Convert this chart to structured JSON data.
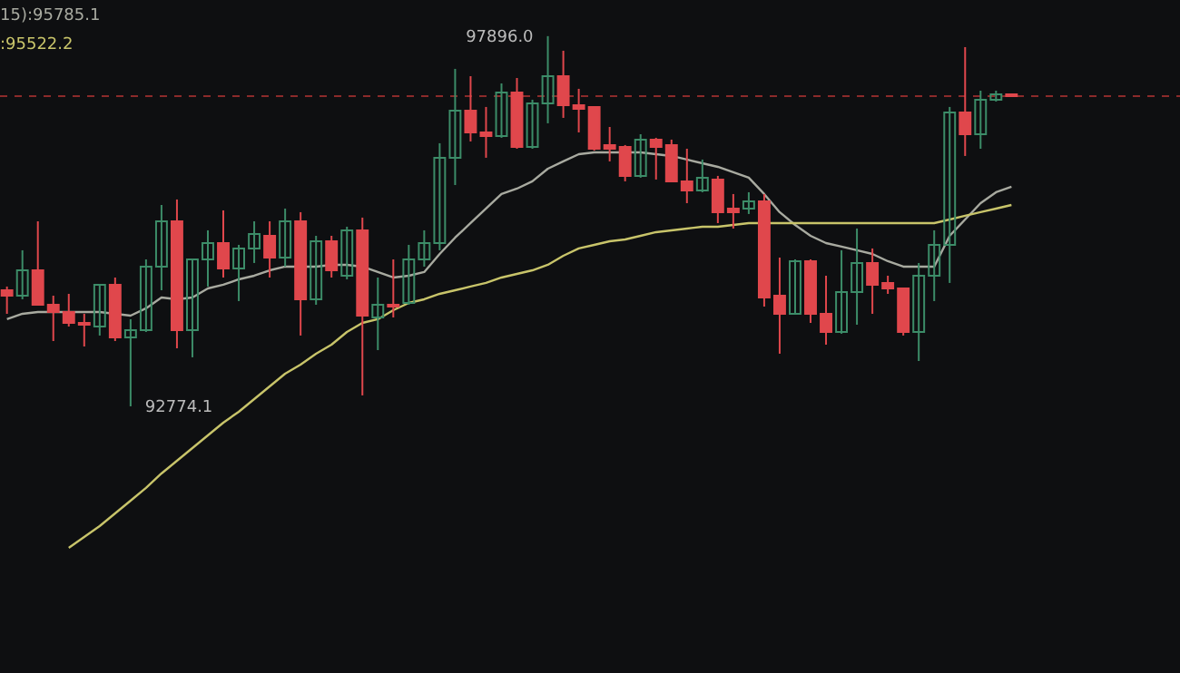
{
  "chart_data": {
    "type": "candlestick",
    "categories": [
      null,
      null,
      null,
      null,
      null,
      null,
      null,
      null,
      null,
      null,
      null,
      null,
      null,
      null,
      null,
      null,
      null,
      null,
      null,
      null,
      null,
      null,
      null,
      null,
      null,
      null,
      null,
      null,
      null,
      null,
      null,
      null,
      null,
      null,
      null,
      null,
      null,
      null,
      null,
      null,
      null,
      null,
      null,
      null,
      null,
      null,
      null,
      null,
      null,
      null,
      null,
      null,
      null,
      null,
      null,
      null,
      null,
      null,
      null,
      null,
      null,
      null,
      null,
      null,
      null,
      null
    ],
    "ohlc": [
      [
        94380,
        94431,
        94054,
        94305
      ],
      [
        94305,
        94933,
        94255,
        94656
      ],
      [
        94656,
        95334,
        94179,
        94179
      ],
      [
        94179,
        94305,
        93677,
        94079
      ],
      [
        94079,
        94330,
        93878,
        93928
      ],
      [
        93928,
        94054,
        93602,
        93903
      ],
      [
        93878,
        94456,
        93753,
        94456
      ],
      [
        94456,
        94556,
        93677,
        93728
      ],
      [
        93728,
        93979,
        92774.1,
        93828
      ],
      [
        93828,
        94807,
        93803,
        94707
      ],
      [
        94707,
        95560,
        94380,
        95334
      ],
      [
        95334,
        95636,
        93577,
        93828
      ],
      [
        93828,
        94807,
        93452,
        94807
      ],
      [
        94807,
        95209,
        94431,
        95033
      ],
      [
        95033,
        95485,
        94556,
        94682
      ],
      [
        94682,
        95008,
        94230,
        94958
      ],
      [
        94958,
        95334,
        94757,
        95159
      ],
      [
        95133,
        95334,
        94556,
        94832
      ],
      [
        94832,
        95510,
        94707,
        95334
      ],
      [
        95334,
        95460,
        93753,
        94255
      ],
      [
        94255,
        95133,
        94179,
        95058
      ],
      [
        95058,
        95133,
        94556,
        94656
      ],
      [
        94581,
        95259,
        94531,
        95209
      ],
      [
        95209,
        95385,
        92925,
        94029
      ],
      [
        94004,
        94556,
        93552,
        94179
      ],
      [
        94179,
        94807,
        94004,
        94154
      ],
      [
        94204,
        95008,
        94179,
        94807
      ],
      [
        94807,
        95209,
        94707,
        95033
      ],
      [
        95033,
        96414,
        94933,
        96213
      ],
      [
        96213,
        97443,
        95836,
        96865
      ],
      [
        96865,
        97342,
        96439,
        96564
      ],
      [
        96564,
        96916,
        96213,
        96514
      ],
      [
        96514,
        97242,
        96489,
        97116
      ],
      [
        97116,
        97317,
        96338,
        96363
      ],
      [
        96363,
        97016,
        96338,
        96966
      ],
      [
        96966,
        97896.0,
        96690,
        97342
      ],
      [
        97342,
        97694,
        96765,
        96941
      ],
      [
        96941,
        97167,
        96564,
        96891
      ],
      [
        96916,
        96916,
        96313,
        96338
      ],
      [
        96389,
        96639,
        96163,
        96338
      ],
      [
        96363,
        96389,
        95887,
        95962
      ],
      [
        95962,
        96539,
        95937,
        96464
      ],
      [
        96464,
        96489,
        95912,
        96363
      ],
      [
        96389,
        96464,
        95887,
        95887
      ],
      [
        95887,
        96338,
        95585,
        95761
      ],
      [
        95761,
        96188,
        95736,
        95937
      ],
      [
        95912,
        95962,
        95309,
        95460
      ],
      [
        95510,
        95711,
        95234,
        95460
      ],
      [
        95510,
        95736,
        95435,
        95611
      ],
      [
        95611,
        95711,
        94154,
        94280
      ],
      [
        94305,
        94832,
        93502,
        94054
      ],
      [
        94054,
        94807,
        94054,
        94782
      ],
      [
        94782,
        94807,
        93928,
        94054
      ],
      [
        94054,
        94581,
        93627,
        93803
      ],
      [
        93803,
        94933,
        93778,
        94355
      ],
      [
        94355,
        95234,
        93903,
        94757
      ],
      [
        94757,
        94958,
        94054,
        94456
      ],
      [
        94481,
        94581,
        94330,
        94405
      ],
      [
        94405,
        94405,
        93753,
        93803
      ],
      [
        93803,
        94757,
        93401,
        94581
      ],
      [
        94581,
        95209,
        94230,
        95008
      ],
      [
        95008,
        96916,
        94481,
        96840
      ],
      [
        96840,
        97744,
        96238,
        96539
      ],
      [
        96539,
        97141,
        96338,
        97016
      ],
      [
        97016,
        97141,
        96991,
        97091
      ],
      [
        97091,
        97091,
        97066,
        97066
      ]
    ],
    "colors": [
      "#e0474c",
      "#3c8c68",
      "#e0474c",
      "#e0474c",
      "#e0474c",
      "#e0474c",
      "#3c8c68",
      "#e0474c",
      "#3c8c68",
      "#3c8c68",
      "#3c8c68",
      "#e0474c",
      "#3c8c68",
      "#3c8c68",
      "#e0474c",
      "#3c8c68",
      "#3c8c68",
      "#e0474c",
      "#3c8c68",
      "#e0474c",
      "#3c8c68",
      "#e0474c",
      "#3c8c68",
      "#e0474c",
      "#3c8c68",
      "#e0474c",
      "#3c8c68",
      "#3c8c68",
      "#3c8c68",
      "#3c8c68",
      "#e0474c",
      "#e0474c",
      "#3c8c68",
      "#e0474c",
      "#3c8c68",
      "#3c8c68",
      "#e0474c",
      "#e0474c",
      "#e0474c",
      "#e0474c",
      "#e0474c",
      "#3c8c68",
      "#e0474c",
      "#e0474c",
      "#e0474c",
      "#3c8c68",
      "#e0474c",
      "#e0474c",
      "#3c8c68",
      "#e0474c",
      "#e0474c",
      "#3c8c68",
      "#e0474c",
      "#e0474c",
      "#3c8c68",
      "#3c8c68",
      "#e0474c",
      "#e0474c",
      "#e0474c",
      "#3c8c68",
      "#3c8c68",
      "#3c8c68",
      "#e0474c",
      "#3c8c68",
      "#3c8c68",
      "#e0474c"
    ],
    "series": [
      {
        "type": "line",
        "color": "#a8aaa0",
        "values": [
          93979,
          94054,
          94079,
          94079,
          94079,
          94079,
          94079,
          94054,
          94029,
          94130,
          94280,
          94255,
          94280,
          94405,
          94456,
          94531,
          94581,
          94656,
          94707,
          94707,
          94707,
          94732,
          94732,
          94707,
          94632,
          94556,
          94581,
          94632,
          94882,
          95108,
          95309,
          95510,
          95711,
          95786,
          95887,
          96062,
          96163,
          96263,
          96288,
          96288,
          96288,
          96288,
          96263,
          96238,
          96188,
          96137,
          96087,
          96012,
          95937,
          95711,
          95460,
          95284,
          95133,
          95033,
          94983,
          94933,
          94882,
          94782,
          94707,
          94707,
          94707,
          95133,
          95359,
          95585,
          95736,
          95811
        ]
      },
      {
        "type": "line",
        "color": "#c8c46a",
        "values": [
          null,
          null,
          null,
          null,
          90816,
          90967,
          91117,
          91293,
          91468,
          91645,
          91845,
          92021,
          92197,
          92372,
          92548,
          92699,
          92874,
          93050,
          93226,
          93351,
          93502,
          93627,
          93803,
          93928,
          93979,
          94104,
          94204,
          94255,
          94330,
          94380,
          94431,
          94481,
          94556,
          94606,
          94656,
          94732,
          94857,
          94958,
          95008,
          95058,
          95083,
          95133,
          95184,
          95209,
          95234,
          95259,
          95259,
          95284,
          95309,
          95309,
          95309,
          95309,
          95309,
          95309,
          95309,
          95309,
          95309,
          95309,
          95309,
          95309,
          95309,
          95359,
          95410,
          95460,
          95510,
          95560
        ]
      }
    ],
    "ylim": [
      89084,
      98396
    ],
    "ref_lines": [
      {
        "axis": "y",
        "value": 97066,
        "color": "#8b2a2a",
        "line_style": "dashed"
      }
    ],
    "annotations": [
      "15):95785.1",
      ":95522.2",
      "97896.0",
      "92774.1"
    ]
  }
}
